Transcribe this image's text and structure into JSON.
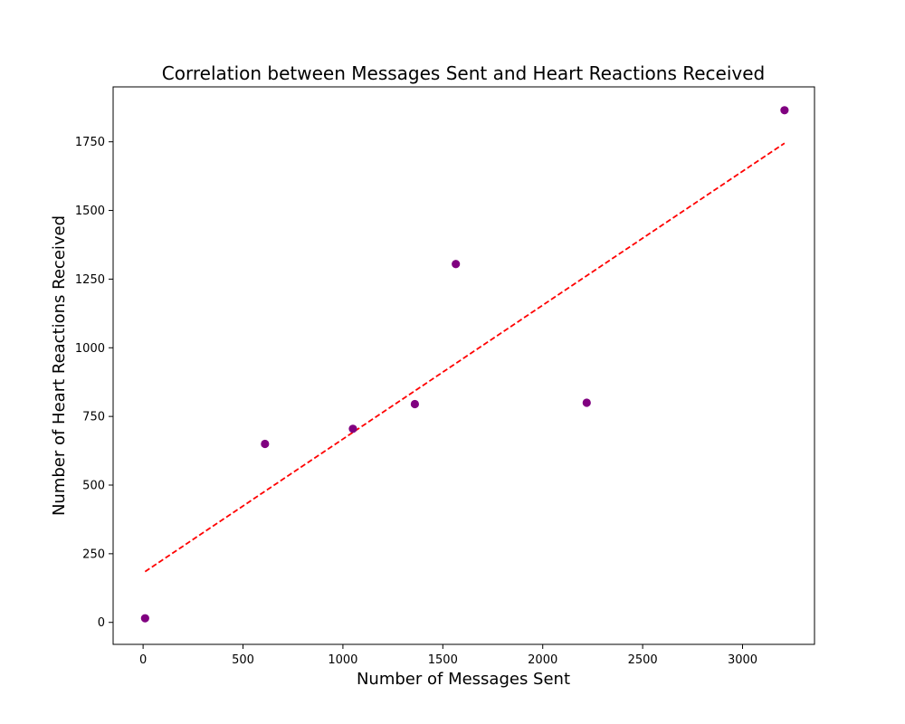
{
  "chart_data": {
    "type": "scatter",
    "title": "Correlation between Messages Sent and Heart Reactions Received",
    "xlabel": "Number of Messages Sent",
    "ylabel": "Number of Heart Reactions Received",
    "xlim": [
      -150,
      3360
    ],
    "ylim": [
      -80,
      1950
    ],
    "xticks": [
      0,
      500,
      1000,
      1500,
      2000,
      2500,
      3000
    ],
    "yticks": [
      0,
      250,
      500,
      750,
      1000,
      1250,
      1500,
      1750
    ],
    "grid": false,
    "points": [
      {
        "x": 10,
        "y": 15
      },
      {
        "x": 610,
        "y": 650
      },
      {
        "x": 1050,
        "y": 705
      },
      {
        "x": 1360,
        "y": 795
      },
      {
        "x": 1565,
        "y": 1305
      },
      {
        "x": 2220,
        "y": 800
      },
      {
        "x": 3210,
        "y": 1865
      }
    ],
    "trendline": {
      "style": "dashed",
      "points": [
        {
          "x": 10,
          "y": 185
        },
        {
          "x": 3210,
          "y": 1745
        }
      ]
    },
    "colors": {
      "points": "#800080",
      "trendline": "#ff0000",
      "axes": "#000000"
    }
  }
}
